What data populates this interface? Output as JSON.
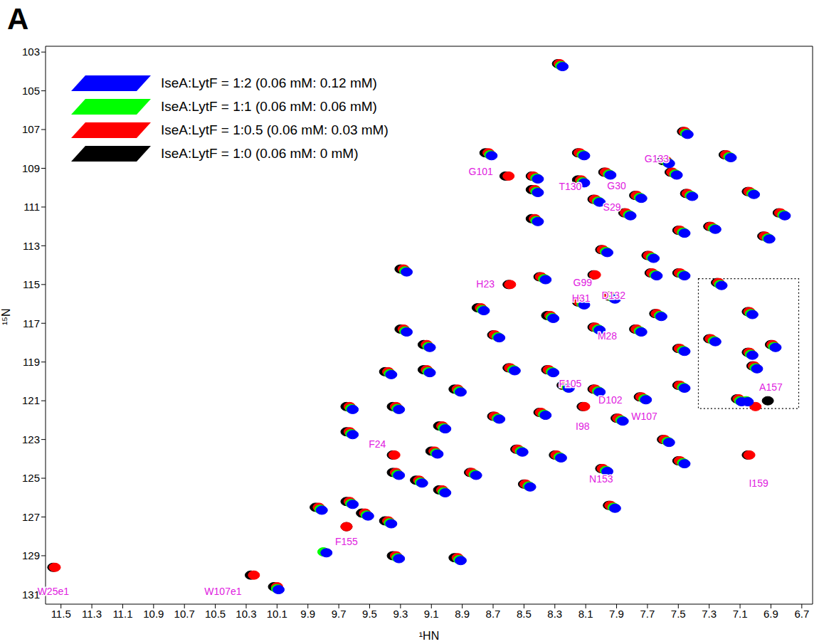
{
  "chart_data": {
    "type": "scatter",
    "panel_label": "A",
    "x_label": "¹HN",
    "y_label": "¹⁵N",
    "xlim": [
      11.6,
      6.63
    ],
    "ylim": [
      131.5,
      102.7
    ],
    "xticks": [
      11.5,
      11.3,
      11.1,
      10.9,
      10.7,
      10.5,
      10.3,
      10.1,
      9.9,
      9.7,
      9.5,
      9.3,
      9.1,
      8.9,
      8.7,
      8.5,
      8.3,
      8.1,
      7.9,
      7.7,
      7.5,
      7.3,
      7.1,
      6.9,
      6.7
    ],
    "yticks": [
      103,
      105,
      107,
      109,
      111,
      113,
      115,
      117,
      119,
      121,
      123,
      125,
      127,
      129,
      131
    ],
    "legend": "upper left",
    "grid": false,
    "box": {
      "x": [
        7.37,
        6.72
      ],
      "y": [
        114.7,
        121.4
      ]
    },
    "annotations": [
      {
        "text": "G101",
        "x": 8.78,
        "y": 109.2
      },
      {
        "text": "T130",
        "x": 8.2,
        "y": 110.0
      },
      {
        "text": "G30",
        "x": 7.9,
        "y": 109.95
      },
      {
        "text": "S29",
        "x": 7.93,
        "y": 111.05
      },
      {
        "text": "G133",
        "x": 7.64,
        "y": 108.55
      },
      {
        "text": "H23",
        "x": 8.75,
        "y": 115.0
      },
      {
        "text": "G99",
        "x": 8.12,
        "y": 114.95
      },
      {
        "text": "H31",
        "x": 8.13,
        "y": 115.75
      },
      {
        "text": "D132",
        "x": 7.92,
        "y": 115.6
      },
      {
        "text": "M28",
        "x": 7.96,
        "y": 117.7
      },
      {
        "text": "F105",
        "x": 8.2,
        "y": 120.15
      },
      {
        "text": "D102",
        "x": 7.94,
        "y": 121.0
      },
      {
        "text": "I98",
        "x": 8.12,
        "y": 122.35
      },
      {
        "text": "W107",
        "x": 7.72,
        "y": 121.85
      },
      {
        "text": "F24",
        "x": 9.45,
        "y": 123.3
      },
      {
        "text": "N153",
        "x": 8.0,
        "y": 125.1
      },
      {
        "text": "I159",
        "x": 6.98,
        "y": 125.3
      },
      {
        "text": "A157",
        "x": 6.9,
        "y": 120.35
      },
      {
        "text": "F155",
        "x": 9.65,
        "y": 128.3
      },
      {
        "text": "W25e1",
        "x": 11.55,
        "y": 130.9
      },
      {
        "text": "W107e1",
        "x": 10.45,
        "y": 130.9
      }
    ],
    "series": [
      {
        "name": "IseA:LytF = 1:0 (0.06 mM: 0 mM)",
        "color": "#000000",
        "marker": "blob",
        "x": [
          8.28,
          7.47,
          8.75,
          8.15,
          7.6,
          7.2,
          8.62,
          8.45,
          8.15,
          7.98,
          7.55,
          8.45,
          8.05,
          7.78,
          7.45,
          7.05,
          8.45,
          7.85,
          7.5,
          7.3,
          6.95,
          6.85,
          8.0,
          7.7,
          9.3,
          8.6,
          8.4,
          8.05,
          7.68,
          7.5,
          8.8,
          8.15,
          7.95,
          8.35,
          7.65,
          9.3,
          9.15,
          8.7,
          8.05,
          7.78,
          7.5,
          7.25,
          7.05,
          7.3,
          7.05,
          6.9,
          7.02,
          7.12,
          6.92,
          9.4,
          9.15,
          8.95,
          8.6,
          8.35,
          8.25,
          8.05,
          7.75,
          7.5,
          9.65,
          9.35,
          9.05,
          8.7,
          8.4,
          8.12,
          7.9,
          7.6,
          9.65,
          9.35,
          9.1,
          8.85,
          8.55,
          8.3,
          8.0,
          7.5,
          9.35,
          9.2,
          9.05,
          8.5,
          7.05,
          9.65,
          9.85,
          9.55,
          9.4,
          7.95,
          9.65,
          9.35,
          8.95,
          10.27,
          10.12,
          11.55
        ],
        "y": [
          103.6,
          107.1,
          108.2,
          108.2,
          108.6,
          108.3,
          109.4,
          109.4,
          109.6,
          109.2,
          109.2,
          110.1,
          110.6,
          110.4,
          110.3,
          110.2,
          111.6,
          111.3,
          112.2,
          112.0,
          112.5,
          111.3,
          113.2,
          113.5,
          114.2,
          115.0,
          114.6,
          114.5,
          114.4,
          114.4,
          116.2,
          115.9,
          115.6,
          116.6,
          116.5,
          117.3,
          118.1,
          117.6,
          117.2,
          117.3,
          118.3,
          114.9,
          116.4,
          117.8,
          118.5,
          118.1,
          119.2,
          120.9,
          121.0,
          119.5,
          119.4,
          120.4,
          119.3,
          119.4,
          120.2,
          120.4,
          120.8,
          120.2,
          121.3,
          121.3,
          122.3,
          121.8,
          121.6,
          121.3,
          121.9,
          123.0,
          122.6,
          123.8,
          123.6,
          124.7,
          123.5,
          123.8,
          124.5,
          124.1,
          124.7,
          125.1,
          125.6,
          125.3,
          123.8,
          126.2,
          126.5,
          126.8,
          127.2,
          126.4,
          127.5,
          129.0,
          129.1,
          130.0,
          130.6,
          129.6
        ]
      },
      {
        "name": "IseA:LytF = 1:0.5 (0.06 mM: 0.03 mM)",
        "color": "#ff0000",
        "marker": "blob",
        "x": [
          8.27,
          7.46,
          8.73,
          8.14,
          7.58,
          7.19,
          8.6,
          8.44,
          8.13,
          7.97,
          7.54,
          8.43,
          8.04,
          7.77,
          7.44,
          7.04,
          8.43,
          7.84,
          7.49,
          7.29,
          6.94,
          6.84,
          7.99,
          7.69,
          9.28,
          8.59,
          8.39,
          8.04,
          7.67,
          7.49,
          8.78,
          8.14,
          7.94,
          8.33,
          7.64,
          9.28,
          9.13,
          8.69,
          8.04,
          7.77,
          7.49,
          7.24,
          7.04,
          7.29,
          7.04,
          6.89,
          7.01,
          7.11,
          7.0,
          9.38,
          9.13,
          8.93,
          8.59,
          8.34,
          8.24,
          8.04,
          7.74,
          7.49,
          9.63,
          9.33,
          9.03,
          8.69,
          8.39,
          8.11,
          7.89,
          7.59,
          9.63,
          9.34,
          9.08,
          8.84,
          8.54,
          8.29,
          7.99,
          7.49,
          9.33,
          9.18,
          9.03,
          8.49,
          7.04,
          9.63,
          9.83,
          9.53,
          9.38,
          7.94,
          9.65,
          9.33,
          8.93,
          10.25,
          10.1,
          11.54
        ],
        "y": [
          103.6,
          107.1,
          108.2,
          108.2,
          108.6,
          108.3,
          109.4,
          109.4,
          109.6,
          109.2,
          109.2,
          110.1,
          110.6,
          110.4,
          110.3,
          110.2,
          111.6,
          111.3,
          112.2,
          112.0,
          112.5,
          111.3,
          113.2,
          113.5,
          114.2,
          115.0,
          114.6,
          114.5,
          114.4,
          114.4,
          116.2,
          115.9,
          115.6,
          116.6,
          116.5,
          117.3,
          118.1,
          117.6,
          117.2,
          117.3,
          118.3,
          114.9,
          116.4,
          117.8,
          118.5,
          118.1,
          119.2,
          120.9,
          121.3,
          119.5,
          119.4,
          120.4,
          119.3,
          119.4,
          120.2,
          120.4,
          120.8,
          120.2,
          121.3,
          121.3,
          122.3,
          121.8,
          121.6,
          121.3,
          121.9,
          123.0,
          122.6,
          123.8,
          123.6,
          124.7,
          123.5,
          123.8,
          124.5,
          124.1,
          124.7,
          125.1,
          125.6,
          125.3,
          123.8,
          126.2,
          126.5,
          126.8,
          127.2,
          126.4,
          127.5,
          129.0,
          129.1,
          130.0,
          130.6,
          129.6
        ]
      },
      {
        "name": "IseA:LytF = 1:1 (0.06 mM: 0.06 mM)",
        "color": "#00ff00",
        "marker": "blob",
        "x": [
          8.26,
          7.45,
          8.72,
          8.12,
          7.57,
          7.17,
          8.42,
          8.12,
          7.95,
          7.52,
          8.42,
          8.02,
          7.75,
          7.42,
          7.02,
          8.42,
          7.82,
          7.47,
          7.27,
          6.92,
          6.82,
          7.97,
          7.67,
          9.27,
          8.37,
          7.65,
          7.47,
          8.77,
          8.12,
          7.92,
          8.32,
          7.62,
          9.27,
          9.12,
          8.67,
          8.02,
          7.75,
          7.47,
          7.23,
          7.03,
          7.27,
          7.03,
          6.88,
          7.0,
          7.1,
          7.06,
          9.37,
          9.12,
          8.92,
          8.57,
          8.32,
          8.22,
          8.02,
          7.72,
          7.47,
          9.62,
          9.32,
          9.02,
          8.67,
          8.37,
          7.87,
          7.57,
          9.62,
          9.07,
          8.82,
          8.52,
          8.27,
          7.97,
          7.47,
          9.32,
          9.17,
          9.02,
          8.47,
          9.62,
          9.82,
          9.52,
          9.37,
          7.92,
          9.8,
          9.32,
          8.92,
          10.1
        ],
        "y": [
          103.7,
          107.2,
          108.3,
          108.3,
          108.7,
          108.4,
          109.5,
          109.7,
          109.3,
          109.3,
          110.2,
          110.7,
          110.5,
          110.4,
          110.3,
          111.7,
          111.4,
          112.3,
          112.1,
          112.6,
          111.4,
          113.3,
          113.6,
          114.3,
          114.7,
          114.5,
          114.5,
          116.3,
          116.0,
          115.7,
          116.7,
          116.6,
          117.4,
          118.2,
          117.7,
          117.3,
          117.4,
          118.4,
          115.0,
          116.5,
          117.9,
          118.6,
          118.2,
          119.3,
          121.0,
          121.0,
          119.6,
          119.5,
          120.5,
          119.4,
          119.5,
          120.3,
          120.5,
          120.9,
          120.3,
          121.4,
          121.4,
          122.4,
          121.9,
          121.7,
          122.0,
          123.1,
          122.7,
          123.7,
          124.8,
          123.6,
          123.9,
          124.6,
          124.2,
          124.8,
          125.2,
          125.7,
          125.4,
          126.3,
          126.6,
          126.9,
          127.3,
          126.5,
          128.8,
          129.1,
          129.2,
          130.7
        ]
      },
      {
        "name": "IseA:LytF = 1:2 (0.06 mM: 0.12 mM)",
        "color": "#0000ff",
        "marker": "blob",
        "x": [
          8.25,
          7.44,
          8.71,
          8.11,
          7.56,
          7.16,
          8.41,
          8.11,
          7.94,
          7.51,
          8.41,
          8.01,
          7.74,
          7.41,
          7.01,
          8.41,
          7.81,
          7.46,
          7.26,
          6.91,
          6.81,
          7.96,
          7.66,
          9.26,
          8.36,
          7.64,
          7.46,
          8.76,
          8.11,
          7.91,
          8.31,
          7.61,
          9.26,
          9.11,
          8.66,
          8.01,
          7.74,
          7.46,
          7.22,
          7.02,
          7.26,
          7.02,
          6.87,
          6.99,
          7.09,
          7.05,
          9.36,
          9.11,
          8.91,
          8.56,
          8.31,
          8.21,
          8.01,
          7.71,
          7.46,
          9.61,
          9.31,
          9.01,
          8.66,
          8.36,
          7.86,
          7.56,
          9.61,
          9.06,
          8.81,
          8.51,
          8.26,
          7.96,
          7.46,
          9.31,
          9.16,
          9.01,
          8.46,
          9.61,
          9.81,
          9.51,
          9.36,
          7.91,
          9.78,
          9.31,
          8.91,
          10.09
        ],
        "y": [
          103.75,
          107.25,
          108.35,
          108.35,
          108.75,
          108.45,
          109.55,
          109.75,
          109.35,
          109.35,
          110.25,
          110.75,
          110.55,
          110.45,
          110.35,
          111.75,
          111.45,
          112.35,
          112.15,
          112.65,
          111.45,
          113.35,
          113.65,
          114.35,
          114.75,
          114.55,
          114.55,
          116.35,
          116.05,
          115.75,
          116.75,
          116.65,
          117.45,
          118.25,
          117.75,
          117.35,
          117.45,
          118.45,
          115.05,
          116.55,
          117.95,
          118.65,
          118.25,
          119.35,
          121.05,
          121.05,
          119.65,
          119.55,
          120.55,
          119.45,
          119.55,
          120.35,
          120.55,
          120.95,
          120.35,
          121.45,
          121.45,
          122.45,
          121.95,
          121.75,
          122.05,
          123.15,
          122.75,
          123.75,
          124.85,
          123.65,
          123.95,
          124.65,
          124.25,
          124.85,
          125.25,
          125.75,
          125.45,
          126.35,
          126.65,
          126.95,
          127.35,
          126.55,
          128.85,
          129.15,
          129.25,
          130.75
        ]
      }
    ]
  }
}
